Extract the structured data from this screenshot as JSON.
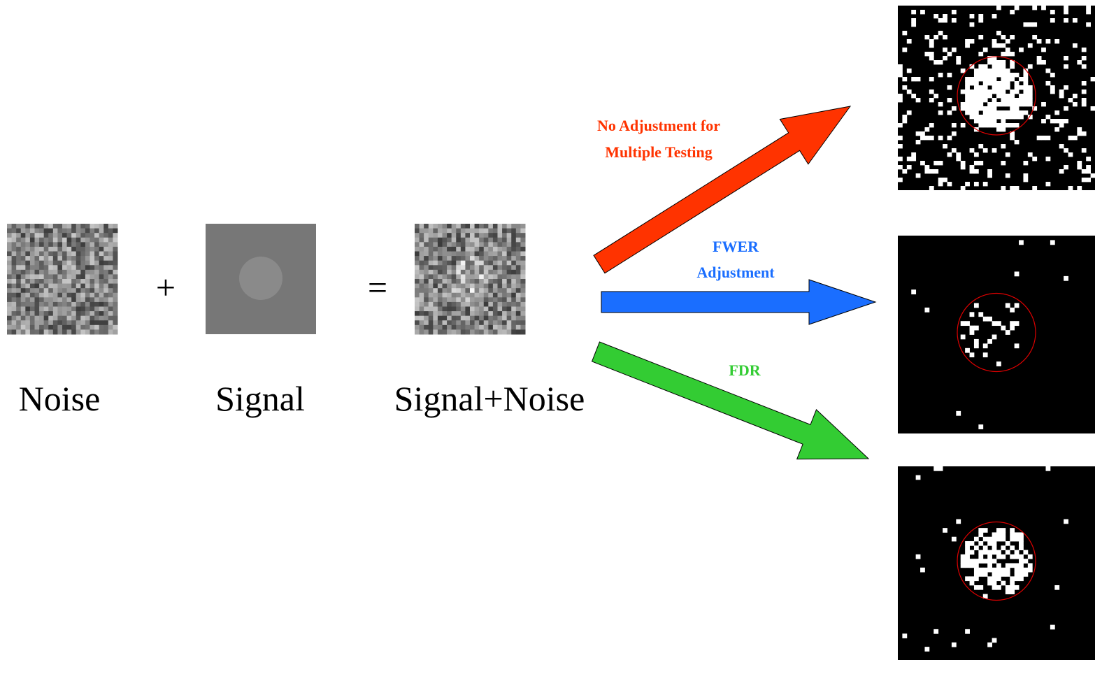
{
  "labels": {
    "plus": "+",
    "equals": "=",
    "noise": "Noise",
    "signal": "Signal",
    "signal_noise": "Signal+Noise"
  },
  "arrows": [
    {
      "label_lines": [
        "No Adjustment for",
        "Multiple Testing"
      ]
    },
    {
      "label_lines": [
        "FWER",
        "Adjustment"
      ]
    },
    {
      "label_lines": [
        "FDR"
      ]
    }
  ]
}
